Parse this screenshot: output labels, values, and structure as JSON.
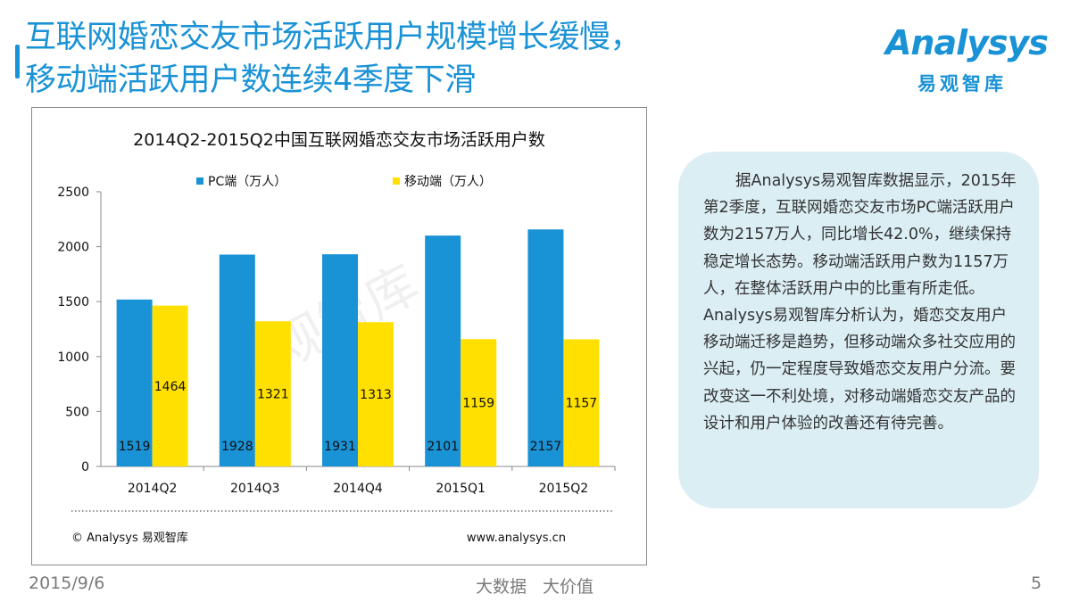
{
  "slide": {
    "title_line1": "互联网婚恋交友市场活跃用户规模增长缓慢，",
    "title_line2": "移动端活跃用户数连续4季度下滑",
    "logo_text": "Analysys",
    "logo_cn": "易观智库",
    "footer_date": "2015/9/6",
    "footer_center_1": "大数据",
    "footer_center_2": "大价值",
    "page_number": "5"
  },
  "colors": {
    "accent": "#1a92d6",
    "pc_bar": "#1a92d6",
    "mobile_bar": "#ffe000",
    "textbox_bg": "#dbeef4"
  },
  "chart_data": {
    "type": "bar",
    "title": "2014Q2-2015Q2中国互联网婚恋交友市场活跃用户数",
    "categories": [
      "2014Q2",
      "2014Q3",
      "2014Q4",
      "2015Q1",
      "2015Q2"
    ],
    "series": [
      {
        "name": "PC端（万人）",
        "values": [
          1519,
          1928,
          1931,
          2101,
          2157
        ],
        "color": "#1a92d6"
      },
      {
        "name": "移动端（万人）",
        "values": [
          1464,
          1321,
          1313,
          1159,
          1157
        ],
        "color": "#ffe000"
      }
    ],
    "y_ticks": [
      0,
      500,
      1000,
      1500,
      2000,
      2500
    ],
    "ylim": [
      0,
      2500
    ],
    "xlabel": "",
    "ylabel": "",
    "legend_position": "top",
    "watermark": "易观智库",
    "source_left": "© Analysys 易观智库",
    "source_right": "www.analysys.cn"
  },
  "textbox": {
    "paragraph1": "据Analysys易观智库数据显示，2015年第2季度，互联网婚恋交友市场PC端活跃用户数为2157万人，同比增长42.0%，继续保持稳定增长态势。移动端活跃用户数为1157万人，在整体活跃用户中的比重有所走低。",
    "paragraph2": "Analysys易观智库分析认为，婚恋交友用户移动端迁移是趋势，但移动端众多社交应用的兴起，仍一定程度导致婚恋交友用户分流。要改变这一不利处境，对移动端婚恋交友产品的设计和用户体验的改善还有待完善。"
  }
}
